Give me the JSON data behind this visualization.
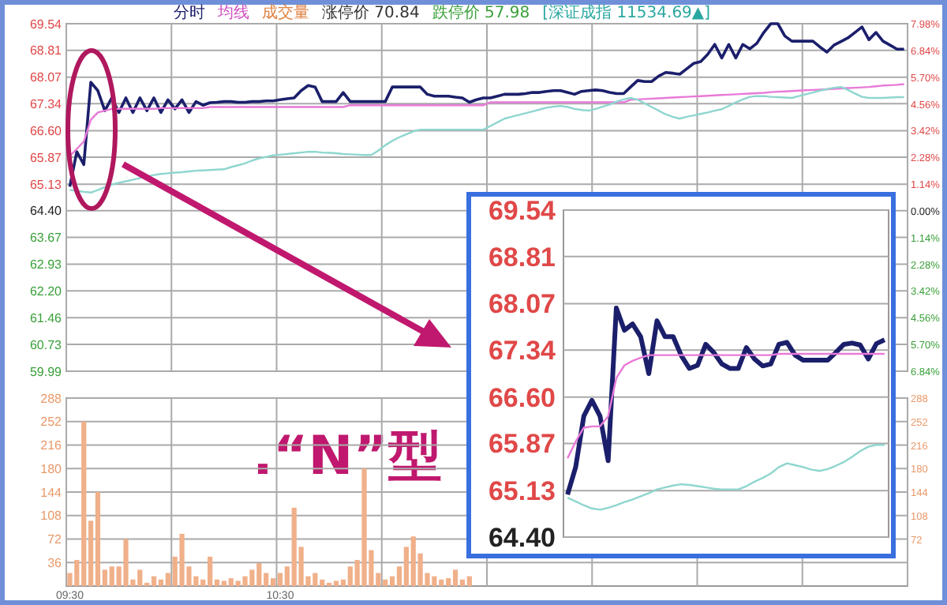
{
  "chart_data": [
    {
      "type": "line",
      "ylim": [
        59.99,
        69.54
      ],
      "yticks": [
        69.54,
        68.81,
        68.07,
        67.34,
        {
          "value": 66.6,
          "label": "66.60"
        },
        65.87,
        65.13,
        {
          "value": 64.4,
          "label": "64.40"
        },
        63.67,
        62.93,
        {
          "value": 62.2,
          "label": "62.20"
        },
        61.46,
        60.73,
        59.99
      ],
      "y2lim": [
        -6.84,
        7.98
      ],
      "y2ticks": [
        {
          "value": 7.98,
          "label": "7.98%"
        },
        {
          "value": 6.84,
          "label": "6.84%"
        },
        {
          "value": 5.7,
          "label": "5.70%"
        },
        {
          "value": 4.56,
          "label": "4.56%"
        },
        {
          "value": 3.42,
          "label": "3.42%"
        },
        {
          "value": 2.28,
          "label": "2.28%"
        },
        {
          "value": 1.14,
          "label": "1.14%"
        },
        {
          "value": 0,
          "label": "0.00%"
        },
        {
          "value": -1.14,
          "label": "1.14%"
        },
        {
          "value": -2.28,
          "label": "2.28%"
        },
        {
          "value": -3.42,
          "label": "3.42%"
        },
        {
          "value": -4.56,
          "label": "4.56%"
        },
        {
          "value": -5.7,
          "label": "5.70%"
        },
        {
          "value": -6.84,
          "label": "6.84%"
        }
      ],
      "categories": [
        null,
        null,
        null,
        null,
        null,
        null,
        null,
        null,
        null,
        null,
        null,
        null,
        null,
        null,
        null,
        null,
        null,
        null,
        null,
        null,
        null,
        null,
        null,
        null,
        null,
        null,
        null,
        null,
        null,
        null,
        null,
        null,
        null,
        null,
        null,
        null,
        null,
        null,
        null,
        null,
        null,
        null,
        null,
        null,
        null,
        null,
        null,
        null,
        null,
        null,
        null,
        null,
        null,
        null,
        null,
        null,
        null,
        null,
        null,
        null,
        null,
        null,
        null,
        null,
        null,
        null,
        null,
        null,
        null,
        null,
        null,
        null,
        null,
        null,
        null,
        null,
        null,
        null,
        null,
        null,
        null,
        null,
        null,
        null,
        null,
        null,
        null,
        null,
        null,
        null,
        null,
        null,
        null,
        null,
        null,
        null,
        null,
        null,
        null,
        null,
        null,
        null,
        null,
        null,
        null,
        null,
        null,
        null,
        null,
        null,
        null,
        null,
        null,
        null,
        null,
        null,
        null,
        null,
        null,
        null
      ],
      "grid": true,
      "annotations": [
        "分时",
        "均线",
        "成交量",
        "涨停价 70.84",
        "跌停价 57.98",
        "[深证成指 11534.69▲]",
        ".“N”型"
      ],
      "series": [
        {
          "color": "#1b1f6b",
          "values": [
            65.06,
            66.02,
            65.67,
            67.93,
            67.7,
            67.15,
            67.5,
            67.1,
            67.5,
            67.1,
            67.5,
            67.15,
            67.5,
            67.1,
            67.45,
            67.2,
            67.45,
            67.1,
            67.4,
            67.3,
            67.37,
            67.38,
            67.4,
            67.4,
            67.38,
            67.38,
            67.4,
            67.4,
            67.42,
            67.42,
            67.45,
            67.48,
            67.5,
            67.7,
            67.84,
            67.8,
            67.4,
            67.4,
            67.4,
            67.65,
            67.4,
            67.4,
            67.4,
            67.4,
            67.4,
            67.4,
            67.8,
            67.8,
            67.8,
            67.8,
            67.8,
            67.6,
            67.55,
            67.55,
            67.55,
            67.52,
            67.5,
            67.38,
            67.45,
            67.5,
            67.5,
            67.55,
            67.6,
            67.6,
            67.6,
            67.62,
            67.65,
            67.65,
            67.68,
            67.7,
            67.7,
            67.65,
            67.6,
            67.68,
            67.7,
            67.72,
            67.7,
            67.65,
            67.62,
            67.62,
            67.8,
            67.98,
            67.95,
            67.95,
            68.1,
            68.2,
            68.18,
            68.15,
            68.3,
            68.45,
            68.5,
            68.7,
            68.97,
            68.6,
            68.97,
            68.6,
            68.97,
            68.85,
            69.0,
            69.3,
            69.54,
            69.54,
            69.2,
            69.06,
            69.06,
            69.06,
            69.06,
            68.9,
            68.76,
            68.95,
            69.05,
            69.15,
            69.3,
            69.45,
            69.1,
            69.3,
            69.06,
            68.95,
            68.84,
            68.84
          ]
        },
        {
          "color": "#e87ad8",
          "values": [
            65.9,
            66.1,
            66.3,
            66.9,
            67.1,
            67.15,
            67.2,
            67.2,
            67.2,
            67.2,
            67.2,
            67.2,
            67.2,
            67.22,
            67.22,
            67.22,
            67.22,
            67.22,
            67.22,
            67.22,
            67.25,
            67.25,
            67.25,
            67.25,
            67.25,
            67.25,
            67.25,
            67.25,
            67.25,
            67.25,
            67.25,
            67.25,
            67.25,
            67.25,
            67.25,
            67.25,
            67.25,
            67.25,
            67.25,
            67.25,
            67.3,
            67.3,
            67.3,
            67.3,
            67.3,
            67.3,
            67.3,
            67.3,
            67.3,
            67.3,
            67.3,
            67.3,
            67.3,
            67.3,
            67.3,
            67.3,
            67.3,
            67.3,
            67.3,
            67.3,
            67.38,
            67.38,
            67.38,
            67.38,
            67.38,
            67.38,
            67.38,
            67.38,
            67.38,
            67.38,
            67.38,
            67.38,
            67.38,
            67.38,
            67.38,
            67.38,
            67.38,
            67.38,
            67.38,
            67.38,
            67.45,
            67.46,
            67.47,
            67.48,
            67.49,
            67.5,
            67.51,
            67.52,
            67.53,
            67.54,
            67.55,
            67.56,
            67.57,
            67.58,
            67.59,
            67.6,
            67.61,
            67.62,
            67.63,
            67.64,
            67.66,
            67.67,
            67.68,
            67.69,
            67.7,
            67.71,
            67.72,
            67.73,
            67.74,
            67.75,
            67.76,
            67.77,
            67.78,
            67.79,
            67.8,
            67.82,
            67.84,
            67.85,
            67.86,
            67.88
          ]
        },
        {
          "color": "#8fd6cf",
          "values": [
            64.97,
            64.95,
            64.92,
            64.9,
            64.97,
            65.05,
            65.12,
            65.17,
            65.21,
            65.25,
            65.3,
            65.34,
            65.38,
            65.41,
            65.43,
            65.45,
            65.46,
            65.48,
            65.5,
            65.51,
            65.52,
            65.53,
            65.54,
            65.6,
            65.65,
            65.7,
            65.78,
            65.84,
            65.88,
            65.92,
            65.94,
            65.96,
            65.98,
            66.0,
            66.02,
            66.02,
            66.0,
            65.99,
            65.98,
            65.96,
            65.95,
            65.94,
            65.93,
            65.93,
            66.05,
            66.2,
            66.32,
            66.42,
            66.5,
            66.58,
            66.63,
            66.63,
            66.63,
            66.63,
            66.63,
            66.63,
            66.63,
            66.63,
            66.63,
            66.63,
            66.73,
            66.83,
            66.93,
            66.98,
            67.03,
            67.08,
            67.13,
            67.18,
            67.23,
            67.26,
            67.28,
            67.25,
            67.2,
            67.17,
            67.15,
            67.2,
            67.26,
            67.32,
            67.4,
            67.46,
            67.5,
            67.45,
            67.35,
            67.25,
            67.15,
            67.05,
            66.98,
            66.93,
            66.98,
            67.02,
            67.06,
            67.1,
            67.15,
            67.19,
            67.28,
            67.38,
            67.46,
            67.53,
            67.55,
            67.55,
            67.53,
            67.52,
            67.51,
            67.5,
            67.55,
            67.6,
            67.65,
            67.7,
            67.74,
            67.78,
            67.8,
            67.72,
            67.62,
            67.53,
            67.5,
            67.5,
            67.5,
            67.51,
            67.52,
            67.52
          ]
        }
      ]
    },
    {
      "type": "bar",
      "ylim": [
        0,
        288
      ],
      "yticks": [
        36,
        72,
        108,
        144,
        180,
        216,
        252,
        288
      ],
      "y2lim": [
        0,
        288
      ],
      "y2ticks": [
        72,
        108,
        144,
        180,
        216,
        252,
        288
      ],
      "grid": true,
      "categories": [
        "09:30",
        null,
        null,
        null,
        null,
        null,
        null,
        null,
        null,
        null,
        null,
        null,
        null,
        null,
        null,
        null,
        null,
        null,
        null,
        null,
        null,
        null,
        null,
        null,
        null,
        null,
        null,
        null,
        null,
        null,
        "10:30",
        null,
        null,
        null,
        null,
        null,
        null,
        null,
        null,
        null,
        null,
        null,
        null,
        null,
        null,
        null,
        null,
        null,
        null,
        null,
        null,
        null,
        null,
        null,
        null,
        null,
        null,
        null,
        null,
        null,
        null,
        null,
        null,
        null,
        null,
        null,
        null,
        null,
        null,
        null,
        null,
        null,
        null,
        null,
        null,
        null,
        null,
        null,
        null,
        null,
        null,
        null,
        null,
        null,
        null,
        null,
        null,
        null,
        null,
        null,
        null,
        null,
        null,
        null,
        null,
        null,
        null,
        null,
        null,
        null,
        null,
        null,
        null,
        null,
        null,
        null,
        null,
        null,
        null,
        null,
        null,
        null,
        null,
        null,
        null,
        null,
        null,
        null,
        null,
        null
      ],
      "series": [
        {
          "color": "#f0b08a",
          "values": [
            20,
            40,
            252,
            100,
            144,
            25,
            30,
            30,
            72,
            10,
            25,
            5,
            15,
            10,
            20,
            45,
            80,
            30,
            15,
            10,
            45,
            10,
            8,
            12,
            8,
            15,
            25,
            35,
            20,
            12,
            20,
            30,
            120,
            60,
            15,
            20,
            10,
            5,
            8,
            10,
            30,
            40,
            180,
            55,
            20,
            10,
            15,
            30,
            60,
            76,
            50,
            20,
            15,
            10,
            12,
            25,
            10,
            15,
            null,
            null,
            null,
            null,
            null,
            null,
            null,
            null,
            null,
            null,
            null,
            null,
            null,
            null,
            null,
            null,
            null,
            null,
            null,
            null,
            null,
            null,
            null,
            null,
            null,
            null,
            null,
            null,
            null,
            null,
            null,
            null,
            null,
            null,
            null,
            null,
            null,
            null,
            null,
            null,
            null,
            null,
            null,
            null,
            null,
            null,
            null,
            null,
            null,
            null,
            null,
            null,
            null,
            null,
            null,
            null,
            null,
            null,
            null,
            null,
            null,
            null
          ]
        }
      ]
    },
    {
      "type": "line",
      "ylim": [
        64.4,
        69.54
      ],
      "yticks": [
        69.54,
        68.81,
        68.07,
        67.34,
        {
          "value": 66.6,
          "label": "66.60"
        },
        65.87,
        65.13,
        {
          "value": 64.4,
          "label": "64.40"
        }
      ],
      "grid": "y",
      "categories": [
        null,
        null,
        null,
        null,
        null,
        null,
        null,
        null,
        null,
        null,
        null,
        null,
        null,
        null,
        null,
        null,
        null,
        null,
        null,
        null,
        null,
        null,
        null,
        null,
        null,
        null,
        null,
        null,
        null,
        null,
        null,
        null,
        null,
        null,
        null,
        null,
        null,
        null,
        null,
        null
      ],
      "series": [
        {
          "color": "#1b1f6b",
          "values": [
            65.07,
            65.5,
            66.3,
            66.55,
            66.3,
            65.6,
            68.0,
            67.65,
            67.75,
            67.55,
            66.97,
            67.8,
            67.55,
            67.55,
            67.25,
            67.05,
            67.1,
            67.43,
            67.3,
            67.12,
            67.05,
            67.05,
            67.38,
            67.2,
            67.09,
            67.12,
            67.43,
            67.46,
            67.26,
            67.18,
            67.18,
            67.18,
            67.18,
            67.3,
            67.43,
            67.45,
            67.42,
            67.2,
            67.44,
            67.5
          ]
        },
        {
          "color": "#e87ad8",
          "values": [
            65.64,
            65.9,
            66.12,
            66.14,
            66.14,
            66.3,
            66.9,
            67.1,
            67.17,
            67.22,
            67.26,
            67.26,
            67.26,
            67.26,
            67.26,
            67.26,
            67.26,
            67.26,
            67.26,
            67.26,
            67.26,
            67.26,
            67.26,
            67.26,
            67.26,
            67.26,
            67.28,
            67.28,
            67.28,
            67.28,
            67.28,
            67.28,
            67.28,
            67.28,
            67.28,
            67.28,
            67.28,
            67.28,
            67.28,
            67.28
          ]
        },
        {
          "color": "#8fd6cf",
          "values": [
            65.02,
            64.96,
            64.9,
            64.85,
            64.83,
            64.86,
            64.9,
            64.95,
            64.99,
            65.04,
            65.09,
            65.15,
            65.18,
            65.21,
            65.23,
            65.22,
            65.2,
            65.18,
            65.16,
            65.15,
            65.15,
            65.15,
            65.2,
            65.27,
            65.33,
            65.4,
            65.5,
            65.56,
            65.53,
            65.5,
            65.46,
            65.44,
            65.47,
            65.52,
            65.58,
            65.66,
            65.75,
            65.82,
            65.85,
            65.85
          ]
        }
      ]
    }
  ]
}
